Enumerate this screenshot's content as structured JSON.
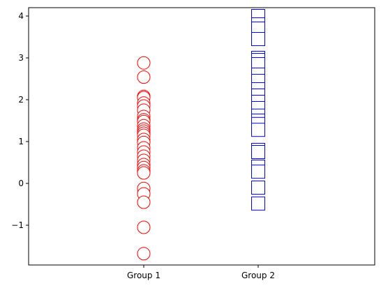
{
  "chart_data": {
    "type": "scatter",
    "title": "",
    "xlabel": "",
    "ylabel": "",
    "categories": [
      "Group 1",
      "Group 2"
    ],
    "ylim": [
      -1.95,
      4.2
    ],
    "yticks": [
      -1,
      0,
      1,
      2,
      3,
      4
    ],
    "ytick_labels": [
      "−1",
      "0",
      "1",
      "2",
      "3",
      "4"
    ],
    "grid": false,
    "legend": "none",
    "series": [
      {
        "category": "Group 1",
        "marker": "circle",
        "color": "#ff0000",
        "values": [
          2.88,
          2.54,
          2.08,
          2.05,
          1.92,
          1.85,
          1.75,
          1.6,
          1.52,
          1.48,
          1.38,
          1.3,
          1.25,
          1.2,
          1.15,
          1.05,
          0.98,
          0.85,
          0.75,
          0.65,
          0.55,
          0.45,
          0.38,
          0.3,
          0.25,
          -0.12,
          -0.25,
          -0.45,
          -1.05,
          -1.68
        ]
      },
      {
        "category": "Group 2",
        "marker": "square",
        "color": "#0000ff",
        "values": [
          4.0,
          3.8,
          3.7,
          3.45,
          3.0,
          2.95,
          2.85,
          2.6,
          2.45,
          2.25,
          2.1,
          1.95,
          1.8,
          1.62,
          1.5,
          1.42,
          1.28,
          0.8,
          0.75,
          0.4,
          0.28,
          -0.1,
          -0.48
        ]
      }
    ]
  }
}
